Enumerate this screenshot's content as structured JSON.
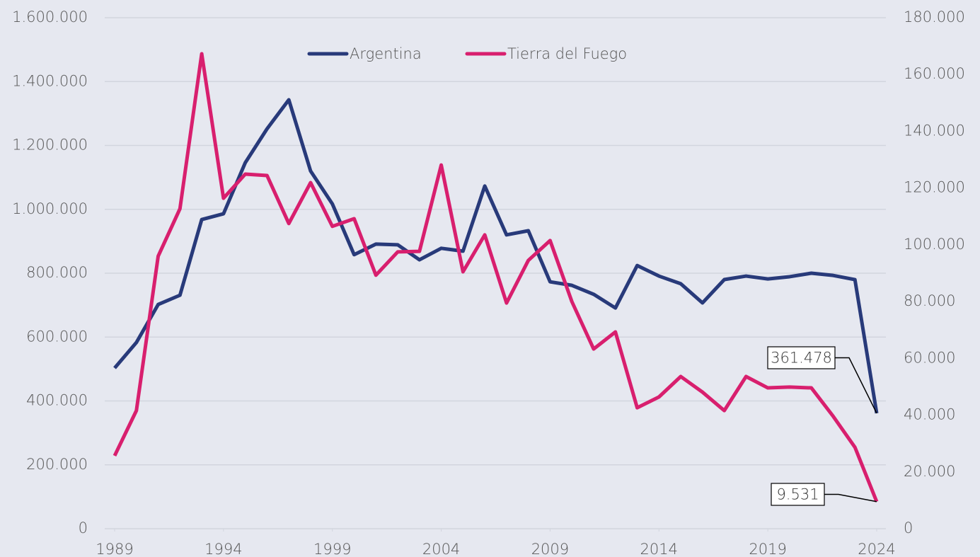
{
  "chart_data": {
    "type": "line",
    "x": [
      1989,
      1990,
      1991,
      1992,
      1993,
      1994,
      1995,
      1996,
      1997,
      1998,
      1999,
      2000,
      2001,
      2002,
      2003,
      2004,
      2005,
      2006,
      2007,
      2008,
      2009,
      2010,
      2011,
      2012,
      2013,
      2014,
      2015,
      2016,
      2017,
      2018,
      2019,
      2020,
      2021,
      2022,
      2023,
      2024
    ],
    "series": [
      {
        "name": "Argentina",
        "color": "#283a7a",
        "axis": "y",
        "values": [
          503000,
          583000,
          702000,
          731000,
          968000,
          986000,
          1146000,
          1252000,
          1343000,
          1120000,
          1017000,
          858000,
          891000,
          889000,
          842000,
          878000,
          869000,
          1073000,
          920000,
          933000,
          773000,
          762000,
          734000,
          691000,
          824000,
          791000,
          767000,
          707000,
          780000,
          791000,
          782000,
          789000,
          800000,
          793000,
          780000,
          361478
        ],
        "value_labels": [
          null,
          null,
          null,
          null,
          null,
          null,
          null,
          null,
          null,
          null,
          null,
          null,
          null,
          null,
          null,
          null,
          null,
          null,
          null,
          null,
          null,
          null,
          null,
          null,
          null,
          null,
          null,
          null,
          null,
          null,
          null,
          null,
          null,
          null,
          null,
          "361.478"
        ]
      },
      {
        "name": "Tierra del Fuego",
        "color": "#d81f6e",
        "axis": "y2",
        "values": [
          25700,
          41600,
          96000,
          112700,
          167300,
          116400,
          124900,
          124400,
          107500,
          121900,
          106500,
          109200,
          89300,
          97500,
          97700,
          128100,
          90500,
          103500,
          79500,
          94500,
          101500,
          80000,
          63300,
          69300,
          42600,
          46400,
          53600,
          48100,
          41600,
          53600,
          49600,
          49900,
          49600,
          39600,
          28700,
          9531
        ],
        "value_labels": [
          null,
          null,
          null,
          null,
          null,
          null,
          null,
          null,
          null,
          null,
          null,
          null,
          null,
          null,
          null,
          null,
          null,
          null,
          null,
          null,
          null,
          null,
          null,
          null,
          null,
          null,
          null,
          null,
          null,
          null,
          null,
          null,
          null,
          null,
          null,
          "9.531"
        ]
      }
    ],
    "xlim": [
      1989,
      2024
    ],
    "xticks": [
      1989,
      1994,
      1999,
      2004,
      2009,
      2014,
      2019,
      2024
    ],
    "ylim": [
      0,
      1600000
    ],
    "yticks": [
      0,
      {
        "value": 200000,
        "label": "200.000"
      },
      {
        "value": 400000,
        "label": "400.000"
      },
      {
        "value": 600000,
        "label": "600.000"
      },
      {
        "value": 800000,
        "label": "800.000"
      },
      {
        "value": 1000000,
        "label": "1.000.000"
      },
      {
        "value": 1200000,
        "label": "1.200.000"
      },
      {
        "value": 1400000,
        "label": "1.400.000"
      },
      {
        "value": 1600000,
        "label": "1.600.000"
      }
    ],
    "y2lim": [
      0,
      180000
    ],
    "y2ticks": [
      0,
      {
        "value": 20000,
        "label": "20.000"
      },
      {
        "value": 40000,
        "label": "40.000"
      },
      {
        "value": 60000,
        "label": "60.000"
      },
      {
        "value": 80000,
        "label": "80.000"
      },
      {
        "value": 100000,
        "label": "100.000"
      },
      {
        "value": 120000,
        "label": "120.000"
      },
      {
        "value": 140000,
        "label": "140.000"
      },
      {
        "value": 160000,
        "label": "160.000"
      },
      {
        "value": 180000,
        "label": "180.000"
      }
    ],
    "grid": true,
    "legend": "top"
  }
}
